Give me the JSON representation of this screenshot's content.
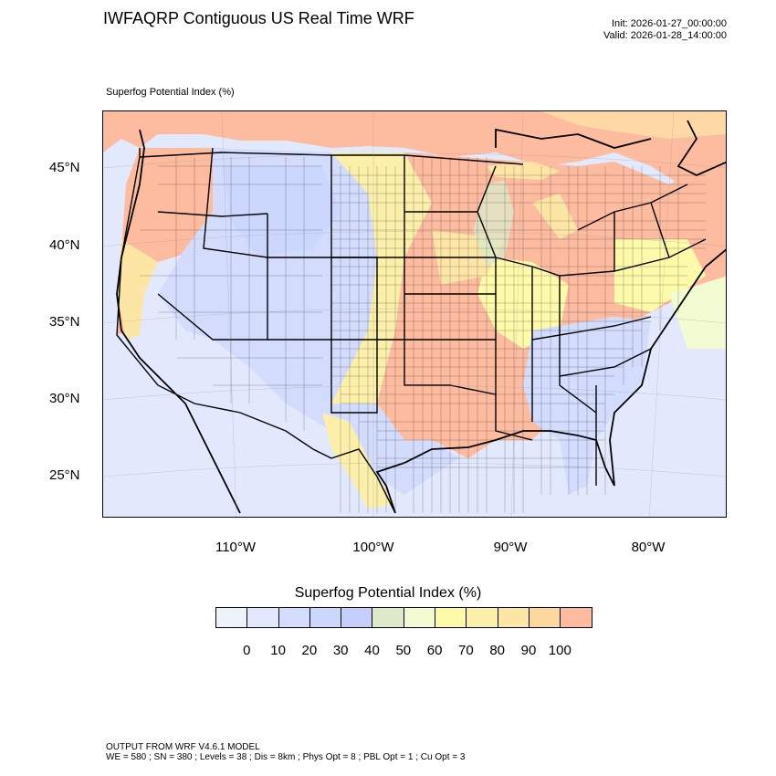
{
  "header": {
    "title": "IWFAQRP Contiguous US Real Time WRF",
    "init": "Init: 2026-01-27_00:00:00",
    "valid": "Valid: 2026-01-28_14:00:00"
  },
  "map": {
    "field_label": "Superfog Potential Index   (%)",
    "lat_labels": [
      "45°N",
      "40°N",
      "35°N",
      "30°N",
      "25°N"
    ],
    "lon_labels": [
      "110°W",
      "100°W",
      "90°W",
      "80°W"
    ],
    "region": "Contiguous United States"
  },
  "colorbar": {
    "title": "Superfog Potential Index  (%)",
    "colors": [
      "#eef2fa",
      "#e3e9fd",
      "#d3dcfd",
      "#cbd7fd",
      "#c6cefd",
      "#dde9c8",
      "#f3fbd2",
      "#fdfbaa",
      "#fbefaa",
      "#fde5a6",
      "#fdd7a0",
      "#fdbba0"
    ],
    "labels": [
      "0",
      "10",
      "20",
      "30",
      "40",
      "50",
      "60",
      "70",
      "80",
      "90",
      "100"
    ]
  },
  "footer": {
    "line1": "OUTPUT FROM WRF V4.6.1 MODEL",
    "line2": "WE = 580 ; SN = 380 ; Levels = 38 ; Dis = 8km ; Phys Opt = 8 ; PBL Opt = 1 ; Cu Opt = 3"
  }
}
